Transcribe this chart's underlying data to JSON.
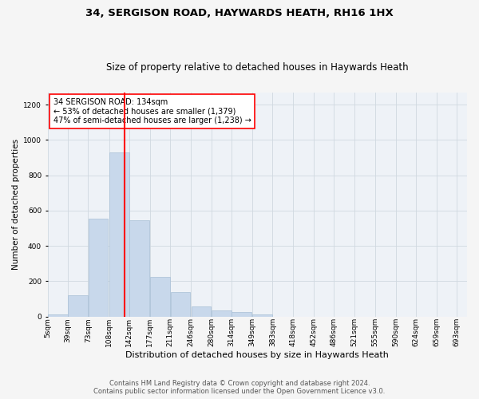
{
  "title_line1": "34, SERGISON ROAD, HAYWARDS HEATH, RH16 1HX",
  "title_line2": "Size of property relative to detached houses in Haywards Heath",
  "xlabel": "Distribution of detached houses by size in Haywards Heath",
  "ylabel": "Number of detached properties",
  "footer_line1": "Contains HM Land Registry data © Crown copyright and database right 2024.",
  "footer_line2": "Contains public sector information licensed under the Open Government Licence v3.0.",
  "annotation_line1": "34 SERGISON ROAD: 134sqm",
  "annotation_line2": "← 53% of detached houses are smaller (1,379)",
  "annotation_line3": "47% of semi-detached houses are larger (1,238) →",
  "bar_color": "#c8d8eb",
  "bar_edge_color": "#a8c0d6",
  "grid_color": "#d0d8e0",
  "vline_color": "red",
  "vline_x": 134,
  "bins_left": [
    5,
    39,
    73,
    108,
    142,
    177,
    211,
    246,
    280,
    314,
    349,
    383,
    418,
    452,
    486,
    521,
    555,
    590,
    624,
    659
  ],
  "bin_labels": [
    "5sqm",
    "39sqm",
    "73sqm",
    "108sqm",
    "142sqm",
    "177sqm",
    "211sqm",
    "246sqm",
    "280sqm",
    "314sqm",
    "349sqm",
    "383sqm",
    "418sqm",
    "452sqm",
    "486sqm",
    "521sqm",
    "555sqm",
    "590sqm",
    "624sqm",
    "659sqm",
    "693sqm"
  ],
  "xtick_positions": [
    5,
    39,
    73,
    108,
    142,
    177,
    211,
    246,
    280,
    314,
    349,
    383,
    418,
    452,
    486,
    521,
    555,
    590,
    624,
    659,
    693
  ],
  "bar_heights": [
    10,
    120,
    555,
    930,
    545,
    225,
    140,
    57,
    33,
    25,
    10,
    0,
    0,
    0,
    0,
    0,
    0,
    0,
    0,
    0
  ],
  "bin_width": 34,
  "ylim": [
    0,
    1270
  ],
  "xlim": [
    5,
    710
  ],
  "background_color": "#eef2f7",
  "fig_background_color": "#f5f5f5",
  "title_fontsize": 9.5,
  "subtitle_fontsize": 8.5,
  "xlabel_fontsize": 8,
  "ylabel_fontsize": 7.5,
  "tick_fontsize": 6.5,
  "annotation_fontsize": 7,
  "footer_fontsize": 6
}
